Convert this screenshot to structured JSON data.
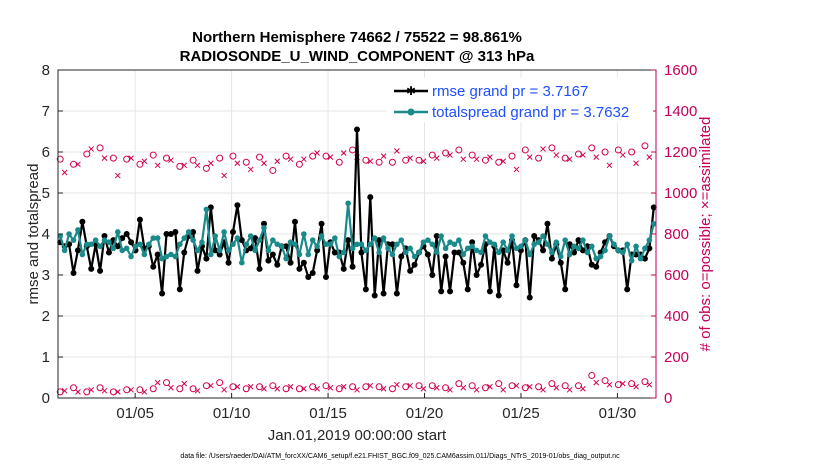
{
  "chart_data": {
    "type": "line",
    "title_line1": "Northern Hemisphere 74662 / 75522 = 98.861%",
    "title_line2": "RADIOSONDE_U_WIND_COMPONENT @ 313 hPa",
    "xlabel": "Jan.01,2019 00:00:00 start",
    "ylabel_left": "rmse and totalspread",
    "ylabel_right": "# of obs: o=possible; ×=assimilated",
    "x_ticks": [
      {
        "day": 5,
        "label": "01/05"
      },
      {
        "day": 10,
        "label": "01/10"
      },
      {
        "day": 15,
        "label": "01/15"
      },
      {
        "day": 20,
        "label": "01/20"
      },
      {
        "day": 25,
        "label": "01/25"
      },
      {
        "day": 30,
        "label": "01/30"
      }
    ],
    "xlim": [
      1,
      32
    ],
    "ylim_left": [
      0,
      8
    ],
    "yticks_left": [
      "0",
      "1",
      "2",
      "3",
      "4",
      "5",
      "6",
      "7",
      "8"
    ],
    "ylim_right": [
      0,
      1600
    ],
    "yticks_right": [
      "0",
      "200",
      "400",
      "600",
      "800",
      "1000",
      "1200",
      "1400",
      "1600"
    ],
    "legend": [
      "rmse grand pr = 3.7167",
      "totalspread grand pr = 3.7632"
    ],
    "colors": {
      "rmse": "#000000",
      "spread": "#1a8a8a",
      "obs": "#d1004f",
      "axis_right": "#c5005a"
    },
    "series": [
      {
        "name": "rmse",
        "values": [
          3.8,
          3.7,
          3.75,
          3.05,
          3.6,
          4.3,
          3.7,
          3.15,
          3.75,
          3.1,
          3.95,
          3.55,
          3.85,
          3.7,
          3.9,
          4.0,
          3.8,
          3.6,
          4.35,
          3.65,
          3.7,
          3.2,
          3.5,
          2.55,
          4.0,
          4.0,
          4.05,
          2.65,
          3.55,
          3.95,
          4.05,
          3.1,
          3.7,
          3.4,
          4.65,
          3.6,
          3.5,
          3.8,
          3.3,
          4.05,
          4.7,
          3.85,
          3.6,
          3.65,
          3.9,
          3.15,
          4.25,
          3.35,
          3.5,
          3.25,
          3.7,
          3.7,
          3.3,
          4.3,
          3.15,
          3.3,
          2.95,
          3.05,
          3.6,
          4.25,
          2.95,
          3.8,
          3.55,
          3.55,
          3.15,
          3.85,
          3.2,
          6.55,
          3.55,
          2.65,
          4.9,
          2.5,
          3.85,
          2.55,
          3.75,
          3.75,
          2.55,
          3.45,
          3.65,
          3.1,
          3.25,
          3.55,
          3.7,
          3.5,
          3.0,
          3.95,
          2.6,
          3.45,
          2.6,
          3.55,
          3.55,
          3.3,
          2.65,
          3.8,
          3.0,
          3.25,
          3.75,
          2.6,
          3.7,
          2.5,
          3.6,
          3.3,
          3.85,
          2.75,
          3.6,
          3.85,
          2.45,
          3.95,
          3.85,
          3.6,
          4.25,
          3.4,
          3.75,
          3.3,
          2.65,
          3.75,
          3.55,
          3.85,
          3.6,
          3.7,
          3.25,
          3.2,
          3.55,
          3.8,
          3.95,
          3.7,
          3.6,
          3.6,
          2.65,
          3.5,
          3.5,
          3.5,
          3.4,
          3.65,
          4.65
        ]
      },
      {
        "name": "totalspread",
        "values": [
          3.95,
          3.6,
          4.0,
          3.85,
          4.1,
          3.5,
          3.75,
          3.75,
          3.85,
          3.7,
          3.85,
          3.8,
          3.65,
          4.05,
          3.6,
          3.65,
          3.45,
          3.7,
          3.75,
          3.5,
          3.75,
          3.9,
          3.9,
          3.4,
          3.45,
          3.5,
          3.45,
          3.75,
          3.9,
          4.05,
          3.85,
          3.6,
          3.8,
          4.6,
          3.5,
          3.95,
          3.6,
          4.05,
          3.6,
          3.75,
          3.9,
          3.3,
          3.75,
          3.95,
          3.6,
          3.85,
          4.15,
          3.6,
          3.85,
          3.75,
          3.7,
          3.4,
          3.8,
          3.75,
          3.5,
          4.0,
          3.5,
          3.85,
          3.7,
          3.95,
          3.75,
          3.75,
          3.9,
          3.45,
          3.55,
          4.75,
          3.65,
          3.75,
          3.75,
          3.6,
          3.75,
          3.9,
          3.55,
          3.9,
          3.65,
          3.5,
          3.75,
          3.85,
          3.55,
          3.65,
          3.45,
          3.55,
          3.8,
          3.85,
          3.75,
          3.55,
          3.95,
          3.65,
          3.8,
          3.75,
          3.85,
          3.5,
          3.65,
          3.7,
          3.6,
          3.55,
          3.95,
          3.8,
          3.75,
          3.55,
          3.8,
          3.6,
          3.95,
          3.65,
          3.7,
          3.85,
          3.5,
          3.75,
          3.8,
          3.95,
          3.75,
          3.55,
          3.8,
          3.45,
          3.85,
          3.5,
          3.7,
          3.65,
          3.85,
          3.55,
          3.7,
          3.4,
          3.45,
          3.6,
          3.95,
          3.75,
          3.6,
          3.55,
          3.75,
          3.35,
          3.7,
          3.4,
          3.65,
          3.85,
          4.25
        ]
      },
      {
        "name": "possible_obs_top",
        "values": [
          1165,
          1115,
          1180,
          1140,
          1155,
          1175,
          1190,
          1230,
          1180,
          1220,
          1185,
          1210,
          1170,
          1100,
          1150,
          1165,
          1185,
          1180,
          1140,
          1170,
          1170,
          1185,
          1150,
          1150,
          1170,
          1175,
          1195,
          1130,
          1150,
          1160,
          1160,
          1150,
          1185,
          1120,
          1160,
          1180,
          1170,
          1100,
          1170,
          1180,
          1160,
          1190,
          1150,
          1130,
          1120,
          1175,
          1160,
          1180,
          1110,
          1170,
          1140,
          1180,
          1180,
          1150,
          1140,
          1180,
          1170,
          1180,
          1210,
          1150,
          1180,
          1190,
          1170,
          1150,
          1210,
          1160,
          1210,
          1190,
          1175,
          1160,
          1170,
          1155,
          1150,
          1195,
          1195,
          1150,
          1220,
          1190,
          1160,
          1185,
          1180,
          1160,
          1170,
          1180,
          1185,
          1185,
          1160,
          1195,
          1200,
          1200,
          1210,
          1180,
          1175,
          1185,
          1180,
          1190,
          1160,
          1190,
          1150,
          1150,
          1170,
          1160,
          1180,
          1130,
          1170,
          1210,
          1190,
          1160,
          1170,
          1230,
          1190,
          1220,
          1200,
          1190,
          1170,
          1180,
          1210,
          1190,
          1200,
          1190,
          1220,
          1190,
          1200,
          1200,
          1150,
          1190,
          1210,
          1200,
          1190,
          1200,
          1160,
          1200,
          1230,
          1190,
          1180
        ]
      },
      {
        "name": "assimilated_obs_top",
        "values": [
          1150,
          1100,
          1165,
          1125,
          1140,
          1160,
          1175,
          1215,
          1165,
          1205,
          1170,
          1195,
          1155,
          1085,
          1135,
          1150,
          1170,
          1165,
          1125,
          1155,
          1155,
          1170,
          1135,
          1135,
          1155,
          1160,
          1180,
          1115,
          1135,
          1145,
          1145,
          1135,
          1170,
          1105,
          1145,
          1165,
          1155,
          1085,
          1155,
          1165,
          1145,
          1175,
          1135,
          1115,
          1105,
          1160,
          1145,
          1165,
          1095,
          1155,
          1125,
          1165,
          1165,
          1135,
          1125,
          1165,
          1155,
          1165,
          1195,
          1135,
          1165,
          1175,
          1155,
          1135,
          1195,
          1145,
          1195,
          1175,
          1160,
          1145,
          1155,
          1140,
          1135,
          1180,
          1180,
          1135,
          1205,
          1175,
          1145,
          1170,
          1165,
          1145,
          1155,
          1165,
          1170,
          1170,
          1145,
          1180,
          1185,
          1185,
          1195,
          1165,
          1160,
          1170,
          1165,
          1175,
          1145,
          1175,
          1135,
          1135,
          1155,
          1145,
          1165,
          1115,
          1155,
          1195,
          1175,
          1145,
          1155,
          1215,
          1175,
          1205,
          1185,
          1175,
          1155,
          1165,
          1195,
          1175,
          1185,
          1175,
          1205,
          1175,
          1185,
          1185,
          1135,
          1175,
          1195,
          1185,
          1175,
          1185,
          1145,
          1185,
          1215,
          1175,
          1165
        ]
      },
      {
        "name": "possible_obs_bottom",
        "values": [
          30,
          40,
          35,
          50,
          35,
          40,
          30,
          45,
          35,
          50,
          40,
          35,
          30,
          35,
          30,
          40,
          45,
          35,
          40,
          35,
          40,
          45,
          80,
          60,
          75,
          55,
          70,
          45,
          75,
          60,
          45,
          40,
          55,
          60,
          65,
          50,
          75,
          45,
          45,
          55,
          60,
          35,
          45,
          60,
          40,
          55,
          50,
          65,
          60,
          50,
          70,
          45,
          60,
          55,
          45,
          50,
          40,
          55,
          50,
          65,
          60,
          55,
          50,
          45,
          60,
          40,
          55,
          45,
          60,
          55,
          65,
          40,
          55,
          50,
          60,
          45,
          70,
          50,
          55,
          65,
          45,
          60,
          50,
          55,
          60,
          55,
          65,
          50,
          45,
          60,
          70,
          55,
          65,
          60,
          45,
          55,
          50,
          60,
          55,
          70,
          45,
          55,
          60,
          65,
          55,
          50,
          60,
          70,
          55,
          45,
          60,
          70,
          55,
          65,
          60,
          45,
          55,
          60,
          50,
          65,
          110,
          80,
          95,
          85,
          70,
          60,
          65,
          75,
          80,
          70,
          60,
          75,
          80,
          70,
          90
        ]
      },
      {
        "name": "assimilated_obs_bottom",
        "values": [
          25,
          35,
          30,
          45,
          30,
          35,
          25,
          40,
          30,
          45,
          35,
          30,
          25,
          30,
          25,
          35,
          40,
          30,
          35,
          30,
          35,
          40,
          75,
          55,
          70,
          50,
          65,
          40,
          70,
          55,
          40,
          35,
          50,
          55,
          60,
          45,
          70,
          40,
          40,
          50,
          55,
          30,
          40,
          55,
          35,
          50,
          45,
          60,
          55,
          45,
          65,
          40,
          55,
          50,
          40,
          45,
          35,
          50,
          45,
          60,
          55,
          50,
          45,
          40,
          55,
          35,
          50,
          40,
          55,
          50,
          60,
          35,
          50,
          45,
          55,
          40,
          65,
          45,
          50,
          60,
          40,
          55,
          45,
          50,
          55,
          50,
          60,
          45,
          40,
          55,
          65,
          50,
          60,
          55,
          40,
          50,
          45,
          55,
          50,
          65,
          40,
          50,
          55,
          60,
          50,
          45,
          55,
          65,
          50,
          40,
          55,
          65,
          50,
          60,
          55,
          40,
          50,
          55,
          45,
          60,
          105,
          75,
          90,
          80,
          65,
          55,
          60,
          70,
          75,
          65,
          55,
          70,
          75,
          65,
          85
        ]
      }
    ]
  },
  "footer": "data file: /Users/raeder/DAI/ATM_forcXX/CAM6_setup/f.e21.FHIST_BGC.f09_025.CAM6assim.011/Diags_NTrS_2019-01/obs_diag_output.nc"
}
